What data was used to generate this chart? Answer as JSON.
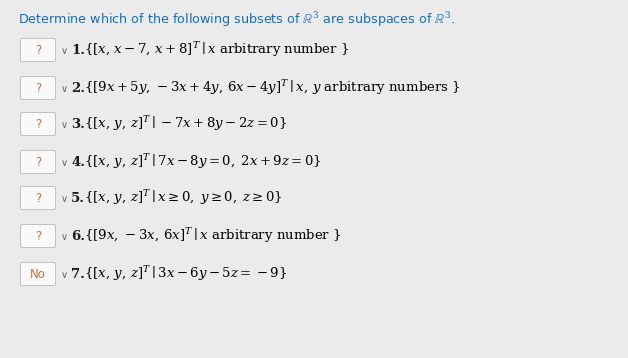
{
  "title": "Determine which of the following subsets of $\\mathbb{R}^3$ are subspaces of $\\mathbb{R}^3$.",
  "bg": "#ebebeb",
  "box_bg": "#f9f9f9",
  "box_edge": "#c0c0c0",
  "text_color": "#000000",
  "label_color": "#c87040",
  "math_color": "#000000",
  "number_color": "#1a1a1a",
  "title_color": "#1a6eb5",
  "rows": [
    {
      "label": "?",
      "number": "1.",
      "math": "$\\{[x,\\, x-7,\\, x+8]^T \\mid x \\text{ arbitrary number }\\}$"
    },
    {
      "label": "?",
      "number": "2.",
      "math": "$\\{[9x+5y,\\,-3x+4y,\\,6x-4y]^T \\mid x,\\,y \\text{ arbitrary numbers }\\}$"
    },
    {
      "label": "?",
      "number": "3.",
      "math": "$\\{[x,\\,y,\\,z]^T \\mid -7x+8y-2z=0\\}$"
    },
    {
      "label": "?",
      "number": "4.",
      "math": "$\\{[x,\\,y,\\,z]^T \\mid 7x-8y=0,\\; 2x+9z=0\\}$"
    },
    {
      "label": "?",
      "number": "5.",
      "math": "$\\{[x,\\,y,\\,z]^T \\mid x\\geq 0,\\; y\\geq 0,\\; z\\geq 0\\}$"
    },
    {
      "label": "?",
      "number": "6.",
      "math": "$\\{[9x,\\,-3x,\\,6x]^T \\mid x \\text{ arbitrary number }\\}$"
    },
    {
      "label": "No",
      "number": "7.",
      "math": "$\\{[x,\\,y,\\,z]^T \\mid 3x-6y-5z=-9\\}$"
    }
  ],
  "figw": 6.28,
  "figh": 3.58,
  "dpi": 100
}
